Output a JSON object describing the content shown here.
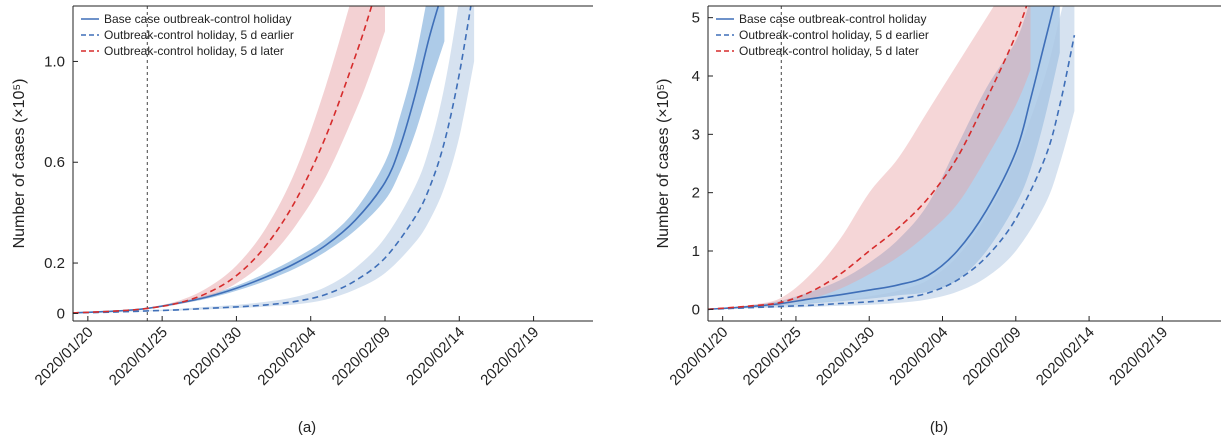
{
  "chart_data": [
    {
      "type": "line",
      "panel_label": "(a)",
      "ylabel": "Number of cases (×10⁵)",
      "ylim": [
        -0.03,
        1.22
      ],
      "yticks": [
        0,
        0.2,
        0.6,
        1.0
      ],
      "ytick_labels": [
        "0",
        "0.2",
        "0.6",
        "1.0"
      ],
      "x_start": "2020/01/19",
      "x_end": "2020/02/23",
      "x_tick_labels": [
        "2020/01/20",
        "2020/01/25",
        "2020/01/30",
        "2020/02/04",
        "2020/02/09",
        "2020/02/14",
        "2020/02/19"
      ],
      "vline_x": "2020/01/24",
      "legend_position": "top-left",
      "series": [
        {
          "name": "Base case outbreak-control holiday",
          "color": "#3f6fb8",
          "dash": "solid",
          "band_color": "#5b97d1",
          "band_opacity": 0.5,
          "x": [
            "2020/01/19",
            "2020/01/22",
            "2020/01/24",
            "2020/01/26",
            "2020/01/28",
            "2020/01/30",
            "2020/02/01",
            "2020/02/03",
            "2020/02/05",
            "2020/02/07",
            "2020/02/09",
            "2020/02/10",
            "2020/02/11",
            "2020/02/12",
            "2020/02/13"
          ],
          "y": [
            0.002,
            0.01,
            0.02,
            0.04,
            0.065,
            0.1,
            0.145,
            0.2,
            0.27,
            0.37,
            0.52,
            0.66,
            0.86,
            1.1,
            1.3
          ],
          "lower": [
            0.002,
            0.009,
            0.018,
            0.036,
            0.058,
            0.09,
            0.13,
            0.18,
            0.245,
            0.33,
            0.45,
            0.56,
            0.71,
            0.9,
            1.08
          ],
          "upper": [
            0.002,
            0.011,
            0.022,
            0.045,
            0.072,
            0.11,
            0.16,
            0.22,
            0.295,
            0.41,
            0.6,
            0.78,
            1.0,
            1.3,
            1.6
          ]
        },
        {
          "name": "Outbreak-control holiday, 5 d earlier",
          "color": "#3f6fb8",
          "dash": "dashed",
          "band_color": "#aec6e2",
          "band_opacity": 0.5,
          "x": [
            "2020/01/19",
            "2020/01/22",
            "2020/01/24",
            "2020/01/26",
            "2020/01/28",
            "2020/01/30",
            "2020/02/01",
            "2020/02/03",
            "2020/02/05",
            "2020/02/07",
            "2020/02/09",
            "2020/02/11",
            "2020/02/12",
            "2020/02/13",
            "2020/02/14",
            "2020/02/15"
          ],
          "y": [
            0.002,
            0.006,
            0.01,
            0.014,
            0.02,
            0.026,
            0.034,
            0.048,
            0.075,
            0.13,
            0.22,
            0.38,
            0.5,
            0.68,
            0.95,
            1.3
          ],
          "lower": [
            0.002,
            0.005,
            0.008,
            0.011,
            0.016,
            0.021,
            0.027,
            0.036,
            0.055,
            0.095,
            0.16,
            0.28,
            0.37,
            0.5,
            0.7,
            1.0
          ],
          "upper": [
            0.002,
            0.007,
            0.012,
            0.018,
            0.026,
            0.034,
            0.046,
            0.066,
            0.105,
            0.18,
            0.3,
            0.5,
            0.66,
            0.9,
            1.25,
            1.7
          ]
        },
        {
          "name": "Outbreak-control holiday, 5 d later",
          "color": "#d62c2c",
          "dash": "dashed",
          "band_color": "#e8a3a7",
          "band_opacity": 0.5,
          "x": [
            "2020/01/19",
            "2020/01/22",
            "2020/01/24",
            "2020/01/26",
            "2020/01/28",
            "2020/01/30",
            "2020/02/01",
            "2020/02/03",
            "2020/02/05",
            "2020/02/07",
            "2020/02/08",
            "2020/02/09"
          ],
          "y": [
            0.002,
            0.01,
            0.02,
            0.04,
            0.08,
            0.15,
            0.27,
            0.45,
            0.7,
            1.02,
            1.2,
            1.4
          ],
          "lower": [
            0.002,
            0.009,
            0.018,
            0.035,
            0.065,
            0.12,
            0.21,
            0.35,
            0.54,
            0.8,
            0.95,
            1.12
          ],
          "upper": [
            0.002,
            0.011,
            0.023,
            0.048,
            0.1,
            0.19,
            0.34,
            0.57,
            0.9,
            1.3,
            1.5,
            1.7
          ]
        }
      ]
    },
    {
      "type": "line",
      "panel_label": "(b)",
      "ylabel": "Number of cases (×10⁵)",
      "ylim": [
        -0.2,
        5.2
      ],
      "yticks": [
        0,
        1,
        2,
        3,
        4,
        5
      ],
      "ytick_labels": [
        "0",
        "1",
        "2",
        "3",
        "4",
        "5"
      ],
      "x_start": "2020/01/19",
      "x_end": "2020/02/23",
      "x_tick_labels": [
        "2020/01/20",
        "2020/01/25",
        "2020/01/30",
        "2020/02/04",
        "2020/02/09",
        "2020/02/14",
        "2020/02/19"
      ],
      "vline_x": "2020/01/24",
      "legend_position": "top-left",
      "series": [
        {
          "name": "Base case outbreak-control holiday",
          "color": "#3f6fb8",
          "dash": "solid",
          "band_color": "#5b97d1",
          "band_opacity": 0.45,
          "x": [
            "2020/01/19",
            "2020/01/22",
            "2020/01/24",
            "2020/01/26",
            "2020/01/28",
            "2020/01/30",
            "2020/02/01",
            "2020/02/03",
            "2020/02/05",
            "2020/02/07",
            "2020/02/09",
            "2020/02/10",
            "2020/02/11",
            "2020/02/12"
          ],
          "y": [
            0.0,
            0.05,
            0.1,
            0.18,
            0.25,
            0.33,
            0.42,
            0.58,
            1.0,
            1.7,
            2.7,
            3.6,
            4.6,
            5.6
          ],
          "lower": [
            0.0,
            0.03,
            0.06,
            0.1,
            0.14,
            0.18,
            0.24,
            0.3,
            0.5,
            1.0,
            1.8,
            2.4,
            3.3,
            4.4
          ],
          "upper": [
            0.0,
            0.07,
            0.15,
            0.3,
            0.5,
            0.8,
            1.2,
            1.8,
            2.8,
            3.8,
            4.6,
            5.3,
            6.0,
            6.5
          ]
        },
        {
          "name": "Outbreak-control holiday, 5 d earlier",
          "color": "#3f6fb8",
          "dash": "dashed",
          "band_color": "#aec6e2",
          "band_opacity": 0.5,
          "x": [
            "2020/01/19",
            "2020/01/22",
            "2020/01/24",
            "2020/01/26",
            "2020/01/28",
            "2020/01/30",
            "2020/02/01",
            "2020/02/03",
            "2020/02/05",
            "2020/02/07",
            "2020/02/09",
            "2020/02/11",
            "2020/02/12",
            "2020/02/13"
          ],
          "y": [
            0.0,
            0.03,
            0.05,
            0.07,
            0.1,
            0.13,
            0.18,
            0.28,
            0.5,
            0.9,
            1.55,
            2.6,
            3.5,
            4.7
          ],
          "lower": [
            0.0,
            0.02,
            0.03,
            0.04,
            0.06,
            0.08,
            0.11,
            0.17,
            0.3,
            0.55,
            1.0,
            1.8,
            2.5,
            3.4
          ],
          "upper": [
            0.0,
            0.05,
            0.08,
            0.11,
            0.15,
            0.22,
            0.32,
            0.5,
            0.9,
            1.6,
            2.6,
            4.0,
            5.0,
            6.0
          ]
        },
        {
          "name": "Outbreak-control holiday, 5 d later",
          "color": "#d62c2c",
          "dash": "dashed",
          "band_color": "#e8a3a7",
          "band_opacity": 0.45,
          "x": [
            "2020/01/19",
            "2020/01/22",
            "2020/01/24",
            "2020/01/26",
            "2020/01/28",
            "2020/01/30",
            "2020/02/01",
            "2020/02/03",
            "2020/02/05",
            "2020/02/07",
            "2020/02/09",
            "2020/02/10"
          ],
          "y": [
            0.0,
            0.06,
            0.12,
            0.3,
            0.6,
            1.0,
            1.4,
            1.9,
            2.6,
            3.6,
            4.7,
            5.4
          ],
          "lower": [
            0.0,
            0.04,
            0.08,
            0.18,
            0.35,
            0.6,
            0.9,
            1.3,
            1.8,
            2.6,
            3.5,
            4.1
          ],
          "upper": [
            0.0,
            0.08,
            0.2,
            0.6,
            1.2,
            2.0,
            2.6,
            3.4,
            4.2,
            5.0,
            5.8,
            6.2
          ]
        }
      ]
    }
  ]
}
